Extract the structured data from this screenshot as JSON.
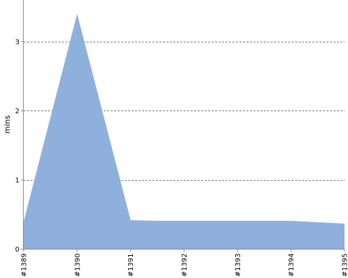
{
  "chart_data": {
    "type": "area",
    "ylabel": "mins",
    "xlabel": "",
    "x": [
      "#1389",
      "#1390",
      "#1391",
      "#1392",
      "#1393",
      "#1394",
      "#1395"
    ],
    "points": [
      {
        "x": 0,
        "y": 0.4
      },
      {
        "x": 1,
        "y": 3.4
      },
      {
        "x": 2,
        "y": 0.42
      },
      {
        "x": 2.5,
        "y": 0.41
      },
      {
        "x": 3,
        "y": 0.41
      },
      {
        "x": 4,
        "y": 0.41
      },
      {
        "x": 5,
        "y": 0.41
      },
      {
        "x": 6,
        "y": 0.37
      }
    ],
    "yticks": [
      0,
      1,
      2,
      3
    ],
    "ylim": [
      0,
      3.6
    ],
    "grid": "horizontal dashed",
    "colors": {
      "area": "#8fb0dc",
      "grid": "#777777",
      "axis": "#888888"
    }
  }
}
